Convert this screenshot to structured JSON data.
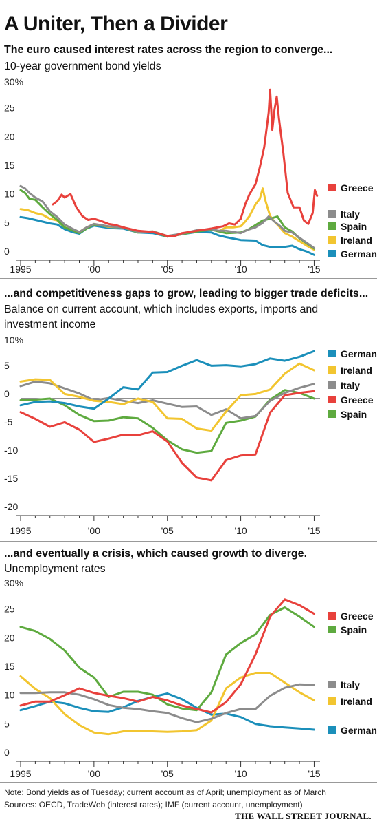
{
  "headline": "A Uniter, Then a Divider",
  "chart_data": [
    {
      "type": "line",
      "title": "The euro caused interest rates across the region to converge...",
      "subtitle": "10-year government bond yields",
      "y_ticks": [
        "30%",
        "25",
        "20",
        "15",
        "10",
        "5",
        "0"
      ],
      "x_ticks": [
        "1995",
        "'00",
        "'05",
        "'10",
        "'15"
      ],
      "ylim": [
        0,
        30
      ],
      "xlim": [
        1995,
        2015.4
      ],
      "grid": false,
      "legend_position": "right",
      "series": [
        {
          "name": "Greece",
          "color": "#e8413c",
          "x": [
            1997.2,
            1997.5,
            1997.8,
            1998.0,
            1998.4,
            1998.8,
            1999.2,
            1999.6,
            2000.0,
            2000.5,
            2001.0,
            2001.5,
            2002.0,
            2003.0,
            2004.0,
            2005.0,
            2005.5,
            2006.0,
            2007.0,
            2008.0,
            2008.8,
            2009.2,
            2009.6,
            2010.0,
            2010.3,
            2010.6,
            2011.0,
            2011.3,
            2011.6,
            2011.9,
            2012.0,
            2012.15,
            2012.3,
            2012.45,
            2012.6,
            2012.9,
            2013.2,
            2013.6,
            2014.0,
            2014.3,
            2014.6,
            2014.9,
            2015.05,
            2015.2
          ],
          "values": [
            9.0,
            9.6,
            10.7,
            10.2,
            10.8,
            8.5,
            7.0,
            6.3,
            6.5,
            6.1,
            5.6,
            5.4,
            5.0,
            4.4,
            4.2,
            3.5,
            3.5,
            4.0,
            4.4,
            4.8,
            5.2,
            5.7,
            5.5,
            6.5,
            9.0,
            10.8,
            12.5,
            15.5,
            19.0,
            25.0,
            29.0,
            22.0,
            25.5,
            27.8,
            24.0,
            18.0,
            11.0,
            8.5,
            8.5,
            6.2,
            5.6,
            7.5,
            11.5,
            10.5
          ]
        },
        {
          "name": "Italy",
          "color": "#8c8c8c",
          "x": [
            1995.0,
            1995.3,
            1995.6,
            1996.0,
            1996.5,
            1997.0,
            1997.5,
            1998.0,
            1998.5,
            1999.0,
            1999.5,
            2000.0,
            2001.0,
            2002.0,
            2003.0,
            2004.0,
            2005.0,
            2006.0,
            2007.0,
            2008.0,
            2008.5,
            2009.0,
            2010.0,
            2010.5,
            2011.0,
            2011.5,
            2011.9,
            2012.3,
            2012.7,
            2013.0,
            2013.5,
            2014.0,
            2014.5,
            2015.0
          ],
          "values": [
            12.2,
            11.8,
            11.0,
            10.2,
            9.5,
            7.8,
            6.8,
            5.5,
            4.8,
            4.2,
            5.0,
            5.6,
            5.2,
            5.0,
            4.2,
            4.3,
            3.5,
            3.9,
            4.5,
            4.7,
            4.4,
            4.4,
            4.0,
            4.6,
            5.0,
            5.8,
            6.9,
            6.0,
            5.2,
            4.4,
            4.1,
            3.2,
            2.3,
            1.4
          ]
        },
        {
          "name": "Spain",
          "color": "#5eaa3f",
          "x": [
            1995.0,
            1995.3,
            1995.6,
            1996.0,
            1996.5,
            1997.0,
            1997.5,
            1998.0,
            1998.5,
            1999.0,
            1999.5,
            2000.0,
            2001.0,
            2002.0,
            2003.0,
            2004.0,
            2005.0,
            2006.0,
            2007.0,
            2008.0,
            2009.0,
            2010.0,
            2010.5,
            2011.0,
            2011.5,
            2012.0,
            2012.5,
            2013.0,
            2013.5,
            2014.0,
            2014.5,
            2015.0
          ],
          "values": [
            11.5,
            11.0,
            10.0,
            9.8,
            8.5,
            7.3,
            6.3,
            5.0,
            4.5,
            4.0,
            4.8,
            5.5,
            5.2,
            5.0,
            4.1,
            4.2,
            3.4,
            3.8,
            4.3,
            4.6,
            4.0,
            4.1,
            4.6,
            5.4,
            6.2,
            6.5,
            6.9,
            5.0,
            4.3,
            3.1,
            2.2,
            1.3
          ]
        },
        {
          "name": "Ireland",
          "color": "#f2c530",
          "x": [
            1995.0,
            1995.5,
            1996.0,
            1996.5,
            1997.0,
            1997.5,
            1998.0,
            1998.5,
            1999.0,
            1999.5,
            2000.0,
            2001.0,
            2002.0,
            2003.0,
            2004.0,
            2005.0,
            2006.0,
            2007.0,
            2008.0,
            2008.5,
            2009.0,
            2009.5,
            2010.0,
            2010.3,
            2010.6,
            2011.0,
            2011.3,
            2011.5,
            2011.7,
            2012.0,
            2012.3,
            2012.6,
            2013.0,
            2013.5,
            2014.0,
            2014.5,
            2015.0
          ],
          "values": [
            8.2,
            8.0,
            7.5,
            7.2,
            6.5,
            6.2,
            5.0,
            4.6,
            4.2,
            5.0,
            5.6,
            5.1,
            5.0,
            4.1,
            4.3,
            3.5,
            3.8,
            4.4,
            4.6,
            4.3,
            5.0,
            5.0,
            5.2,
            6.0,
            7.0,
            9.0,
            10.0,
            11.8,
            9.5,
            7.0,
            6.0,
            5.2,
            4.0,
            3.4,
            2.6,
            1.8,
            1.1
          ]
        },
        {
          "name": "Germany",
          "color": "#1b8fba",
          "x": [
            1995.0,
            1995.5,
            1996.0,
            1996.5,
            1997.0,
            1997.5,
            1998.0,
            1998.5,
            1999.0,
            1999.5,
            2000.0,
            2001.0,
            2002.0,
            2003.0,
            2004.0,
            2005.0,
            2006.0,
            2007.0,
            2008.0,
            2008.5,
            2009.0,
            2010.0,
            2011.0,
            2011.5,
            2012.0,
            2012.5,
            2013.0,
            2013.5,
            2014.0,
            2014.5,
            2015.0
          ],
          "values": [
            6.8,
            6.6,
            6.3,
            6.0,
            5.7,
            5.5,
            4.7,
            4.2,
            3.9,
            4.8,
            5.3,
            4.9,
            4.8,
            4.1,
            4.0,
            3.4,
            3.8,
            4.2,
            4.1,
            3.6,
            3.3,
            2.8,
            2.7,
            1.9,
            1.6,
            1.5,
            1.6,
            1.8,
            1.2,
            0.8,
            0.2
          ]
        }
      ]
    },
    {
      "type": "line",
      "title": "...and competitiveness gaps to grow, leading to bigger trade deficits...",
      "subtitle": "Balance on current account, which includes exports, imports and investment income",
      "y_ticks": [
        "10%",
        "5",
        "0",
        "-5",
        "-10",
        "-15",
        "-20"
      ],
      "x_ticks": [
        "1995",
        "'00",
        "'05",
        "'10",
        "'15"
      ],
      "ylim": [
        -20,
        10
      ],
      "xlim": [
        1995,
        2015.4
      ],
      "zero_line": true,
      "grid": false,
      "legend_position": "right",
      "series": [
        {
          "name": "Germany",
          "color": "#1b8fba",
          "x": [
            1995,
            1996,
            1997,
            1998,
            1999,
            2000,
            2001,
            2002,
            2003,
            2004,
            2005,
            2006,
            2007,
            2008,
            2009,
            2010,
            2011,
            2012,
            2013,
            2014,
            2015
          ],
          "values": [
            -1.2,
            -0.6,
            -0.5,
            -0.8,
            -1.4,
            -1.8,
            0.0,
            2.0,
            1.6,
            4.6,
            4.7,
            5.8,
            6.8,
            5.8,
            5.9,
            5.7,
            6.1,
            7.1,
            6.7,
            7.4,
            8.4
          ]
        },
        {
          "name": "Ireland",
          "color": "#f2c530",
          "x": [
            1995,
            1996,
            1997,
            1998,
            1999,
            2000,
            2001,
            2002,
            2003,
            2004,
            2005,
            2006,
            2007,
            2008,
            2009,
            2010,
            2011,
            2012,
            2013,
            2014,
            2015
          ],
          "values": [
            3.0,
            3.4,
            3.3,
            0.8,
            0.3,
            -0.4,
            -0.6,
            -1.0,
            0.0,
            -0.6,
            -3.5,
            -3.6,
            -5.3,
            -5.7,
            -2.3,
            0.6,
            0.8,
            1.6,
            4.4,
            6.2,
            5.0
          ]
        },
        {
          "name": "Italy",
          "color": "#8c8c8c",
          "x": [
            1995,
            1996,
            1997,
            1998,
            1999,
            2000,
            2001,
            2002,
            2003,
            2004,
            2005,
            2006,
            2007,
            2008,
            2009,
            2010,
            2011,
            2012,
            2013,
            2014,
            2015
          ],
          "values": [
            2.2,
            3.0,
            2.7,
            1.8,
            0.9,
            -0.3,
            0.1,
            -0.4,
            -0.8,
            -0.3,
            -0.9,
            -1.5,
            -1.4,
            -2.9,
            -1.9,
            -3.5,
            -3.1,
            -0.4,
            1.0,
            1.9,
            2.6
          ]
        },
        {
          "name": "Greece",
          "color": "#e8413c",
          "x": [
            1995,
            1996,
            1997,
            1998,
            1999,
            2000,
            2001,
            2002,
            2003,
            2004,
            2005,
            2006,
            2007,
            2008,
            2009,
            2010,
            2011,
            2012,
            2013,
            2014,
            2015
          ],
          "values": [
            -2.4,
            -3.6,
            -5.0,
            -4.2,
            -5.5,
            -7.7,
            -7.1,
            -6.4,
            -6.5,
            -5.8,
            -7.6,
            -11.4,
            -14.0,
            -14.5,
            -10.9,
            -10.1,
            -9.9,
            -2.5,
            0.6,
            1.0,
            1.3
          ]
        },
        {
          "name": "Spain",
          "color": "#5eaa3f",
          "x": [
            1995,
            1996,
            1997,
            1998,
            1999,
            2000,
            2001,
            2002,
            2003,
            2004,
            2005,
            2006,
            2007,
            2008,
            2009,
            2010,
            2011,
            2012,
            2013,
            2014,
            2015
          ],
          "values": [
            -0.3,
            -0.2,
            0.0,
            -1.2,
            -2.9,
            -4.0,
            -3.9,
            -3.3,
            -3.5,
            -5.2,
            -7.4,
            -9.0,
            -9.6,
            -9.3,
            -4.3,
            -3.9,
            -3.2,
            -0.2,
            1.5,
            1.0,
            0.0
          ]
        }
      ]
    },
    {
      "type": "line",
      "title": "...and eventually a crisis, which caused growth to diverge.",
      "subtitle": "Unemployment rates",
      "y_ticks": [
        "30%",
        "25",
        "20",
        "15",
        "10",
        "5",
        "0"
      ],
      "x_ticks": [
        "1995",
        "'00",
        "'05",
        "'10",
        "'15"
      ],
      "ylim": [
        0,
        30
      ],
      "xlim": [
        1995,
        2015.4
      ],
      "grid": false,
      "legend_position": "right",
      "series": [
        {
          "name": "Greece",
          "color": "#e8413c",
          "x": [
            1995,
            1996,
            1997,
            1998,
            1999,
            2000,
            2001,
            2002,
            2003,
            2004,
            2005,
            2006,
            2007,
            2008,
            2009,
            2010,
            2011,
            2012,
            2013,
            2014,
            2015
          ],
          "values": [
            9.0,
            9.7,
            9.7,
            10.8,
            12.0,
            11.2,
            10.7,
            10.3,
            9.7,
            10.5,
            9.9,
            9.0,
            8.4,
            7.8,
            9.6,
            12.7,
            17.9,
            24.5,
            27.5,
            26.5,
            25.0
          ]
        },
        {
          "name": "Spain",
          "color": "#5eaa3f",
          "x": [
            1995,
            1996,
            1997,
            1998,
            1999,
            2000,
            2001,
            2002,
            2003,
            2004,
            2005,
            2006,
            2007,
            2008,
            2009,
            2010,
            2011,
            2012,
            2013,
            2014,
            2015
          ],
          "values": [
            22.7,
            22.0,
            20.6,
            18.6,
            15.6,
            13.9,
            10.5,
            11.4,
            11.4,
            10.9,
            9.2,
            8.5,
            8.2,
            11.3,
            17.9,
            19.9,
            21.4,
            24.8,
            26.1,
            24.5,
            22.7
          ]
        },
        {
          "name": "Italy",
          "color": "#8c8c8c",
          "x": [
            1995,
            1996,
            1997,
            1998,
            1999,
            2000,
            2001,
            2002,
            2003,
            2004,
            2005,
            2006,
            2007,
            2008,
            2009,
            2010,
            2011,
            2012,
            2013,
            2014,
            2015
          ],
          "values": [
            11.2,
            11.2,
            11.3,
            11.3,
            10.9,
            10.1,
            9.1,
            8.6,
            8.4,
            8.0,
            7.7,
            6.8,
            6.1,
            6.7,
            7.7,
            8.4,
            8.4,
            10.7,
            12.1,
            12.7,
            12.6
          ]
        },
        {
          "name": "Ireland",
          "color": "#f2c530",
          "x": [
            1995,
            1996,
            1997,
            1998,
            1999,
            2000,
            2001,
            2002,
            2003,
            2004,
            2005,
            2006,
            2007,
            2008,
            2009,
            2010,
            2011,
            2012,
            2013,
            2014,
            2015
          ],
          "values": [
            14.1,
            11.9,
            10.3,
            7.5,
            5.6,
            4.3,
            4.0,
            4.5,
            4.6,
            4.5,
            4.4,
            4.5,
            4.7,
            6.4,
            12.0,
            13.9,
            14.7,
            14.7,
            13.0,
            11.3,
            9.9
          ]
        },
        {
          "name": "Germany",
          "color": "#1b8fba",
          "x": [
            1995,
            1996,
            1997,
            1998,
            1999,
            2000,
            2001,
            2002,
            2003,
            2004,
            2005,
            2006,
            2007,
            2008,
            2009,
            2010,
            2011,
            2012,
            2013,
            2014,
            2015
          ],
          "values": [
            8.2,
            8.9,
            9.7,
            9.4,
            8.6,
            8.0,
            7.9,
            8.7,
            9.8,
            10.5,
            11.1,
            10.1,
            8.6,
            7.4,
            7.6,
            7.0,
            5.8,
            5.4,
            5.2,
            5.0,
            4.8
          ]
        }
      ]
    }
  ],
  "note": "Note: Bond yields as of Tuesday; current account as of April; unemployment as of March",
  "sources": "Sources: OECD, TradeWeb (interest rates); IMF (current account, unemployment)",
  "masthead": "THE WALL STREET JOURNAL."
}
